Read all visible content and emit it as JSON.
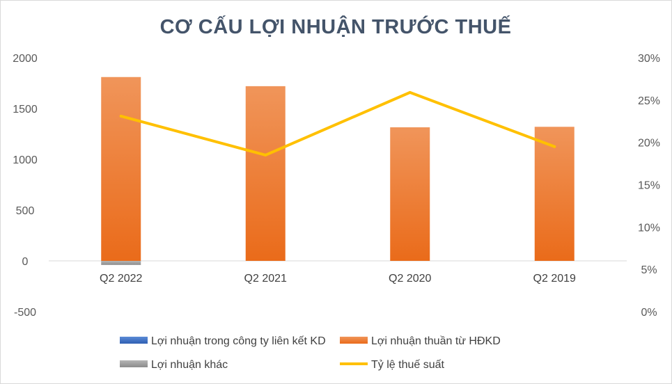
{
  "chart_data": {
    "type": "bar",
    "title": "CƠ CẤU LỢI NHUẬN TRƯỚC THUẾ",
    "categories": [
      "Q2 2022",
      "Q2 2021",
      "Q2 2020",
      "Q2 2019"
    ],
    "series": [
      {
        "name": "Lợi nhuận trong công ty liên kết KD",
        "kind": "bar",
        "axis": "left",
        "color": "#4472c4",
        "values": [
          0,
          0,
          0,
          0
        ]
      },
      {
        "name": "Lợi nhuận thuần từ HĐKD",
        "kind": "bar",
        "axis": "left",
        "color": "#ed7d31",
        "values": [
          1810,
          1720,
          1315,
          1320
        ]
      },
      {
        "name": "Lợi nhuận khác",
        "kind": "bar",
        "axis": "left",
        "color": "#a5a5a5",
        "values": [
          -40,
          0,
          0,
          0
        ]
      },
      {
        "name": "Tỷ lệ thuế suất",
        "kind": "line",
        "axis": "right",
        "color": "#ffc000",
        "values": [
          0.231,
          0.185,
          0.259,
          0.195
        ]
      }
    ],
    "y_left": {
      "min": -500,
      "max": 2000,
      "ticks": [
        "2000",
        "1500",
        "1000",
        "500",
        "0",
        "-500"
      ],
      "tick_values": [
        2000,
        1500,
        1000,
        500,
        0,
        -500
      ]
    },
    "y_right": {
      "min": 0,
      "max": 0.3,
      "ticks": [
        "30%",
        "25%",
        "20%",
        "15%",
        "10%",
        "5%",
        "0%"
      ],
      "tick_values": [
        0.3,
        0.25,
        0.2,
        0.15,
        0.1,
        0.05,
        0
      ]
    },
    "grid": false,
    "legend_placement": "bottom"
  }
}
